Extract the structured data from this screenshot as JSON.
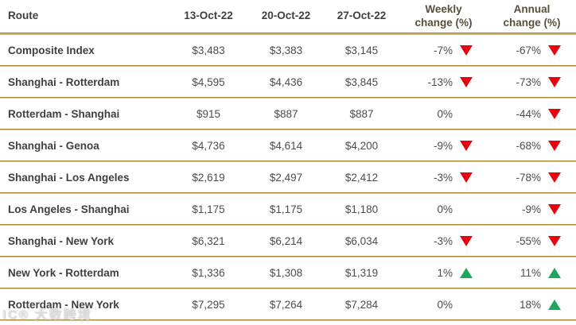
{
  "colors": {
    "gold_line_dark": "#9d7827",
    "gold_line_light": "#d8b667",
    "down_red": "#e60410",
    "up_green": "#1fa75d",
    "header_text": "#3f3f3f",
    "change_header_text": "#5a4f3b",
    "body_text": "#4c4c4c"
  },
  "table": {
    "columns": [
      {
        "label": "Route"
      },
      {
        "label": "13-Oct-22"
      },
      {
        "label": "20-Oct-22"
      },
      {
        "label": "27-Oct-22"
      },
      {
        "label": "Weekly change (%)"
      },
      {
        "label": "Annual change (%)"
      }
    ],
    "rows": [
      {
        "route": "Composite Index",
        "d1": "$3,483",
        "d2": "$3,383",
        "d3": "$3,145",
        "weekly": "-7%",
        "weekly_dir": "down",
        "annual": "-67%",
        "annual_dir": "down"
      },
      {
        "route": "Shanghai - Rotterdam",
        "d1": "$4,595",
        "d2": "$4,436",
        "d3": "$3,845",
        "weekly": "-13%",
        "weekly_dir": "down",
        "annual": "-73%",
        "annual_dir": "down"
      },
      {
        "route": "Rotterdam - Shanghai",
        "d1": "$915",
        "d2": "$887",
        "d3": "$887",
        "weekly": "0%",
        "weekly_dir": "none",
        "annual": "-44%",
        "annual_dir": "down"
      },
      {
        "route": "Shanghai - Genoa",
        "d1": "$4,736",
        "d2": "$4,614",
        "d3": "$4,200",
        "weekly": "-9%",
        "weekly_dir": "down",
        "annual": "-68%",
        "annual_dir": "down"
      },
      {
        "route": "Shanghai - Los Angeles",
        "d1": "$2,619",
        "d2": "$2,497",
        "d3": "$2,412",
        "weekly": "-3%",
        "weekly_dir": "down",
        "annual": "-78%",
        "annual_dir": "down"
      },
      {
        "route": "Los Angeles - Shanghai",
        "d1": "$1,175",
        "d2": "$1,175",
        "d3": "$1,180",
        "weekly": "0%",
        "weekly_dir": "none",
        "annual": "-9%",
        "annual_dir": "down"
      },
      {
        "route": "Shanghai - New York",
        "d1": "$6,321",
        "d2": "$6,214",
        "d3": "$6,034",
        "weekly": "-3%",
        "weekly_dir": "down",
        "annual": "-55%",
        "annual_dir": "down"
      },
      {
        "route": "New York - Rotterdam",
        "d1": "$1,336",
        "d2": "$1,308",
        "d3": "$1,319",
        "weekly": "1%",
        "weekly_dir": "up",
        "annual": "11%",
        "annual_dir": "up"
      },
      {
        "route": "Rotterdam - New York",
        "d1": "$7,295",
        "d2": "$7,264",
        "d3": "$7,284",
        "weekly": "0%",
        "weekly_dir": "none",
        "annual": "18%",
        "annual_dir": "up"
      }
    ]
  },
  "watermark": {
    "text": "IC® 大数跨境"
  },
  "chart_data": {
    "type": "table",
    "title": "",
    "columns": [
      "Route",
      "13-Oct-22",
      "20-Oct-22",
      "27-Oct-22",
      "Weekly change (%)",
      "Annual change (%)"
    ],
    "rows": [
      [
        "Composite Index",
        "$3,483",
        "$3,383",
        "$3,145",
        "-7% ▼",
        "-67% ▼"
      ],
      [
        "Shanghai - Rotterdam",
        "$4,595",
        "$4,436",
        "$3,845",
        "-13% ▼",
        "-73% ▼"
      ],
      [
        "Rotterdam - Shanghai",
        "$915",
        "$887",
        "$887",
        "0%",
        "-44% ▼"
      ],
      [
        "Shanghai - Genoa",
        "$4,736",
        "$4,614",
        "$4,200",
        "-9% ▼",
        "-68% ▼"
      ],
      [
        "Shanghai - Los Angeles",
        "$2,619",
        "$2,497",
        "$2,412",
        "-3% ▼",
        "-78% ▼"
      ],
      [
        "Los Angeles - Shanghai",
        "$1,175",
        "$1,175",
        "$1,180",
        "0%",
        "-9% ▼"
      ],
      [
        "Shanghai - New York",
        "$6,321",
        "$6,214",
        "$6,034",
        "-3% ▼",
        "-55% ▼"
      ],
      [
        "New York - Rotterdam",
        "$1,336",
        "$1,308",
        "$1,319",
        "1% ▲",
        "11% ▲"
      ],
      [
        "Rotterdam - New York",
        "$7,295",
        "$7,264",
        "$7,284",
        "0%",
        "18% ▲"
      ]
    ]
  }
}
